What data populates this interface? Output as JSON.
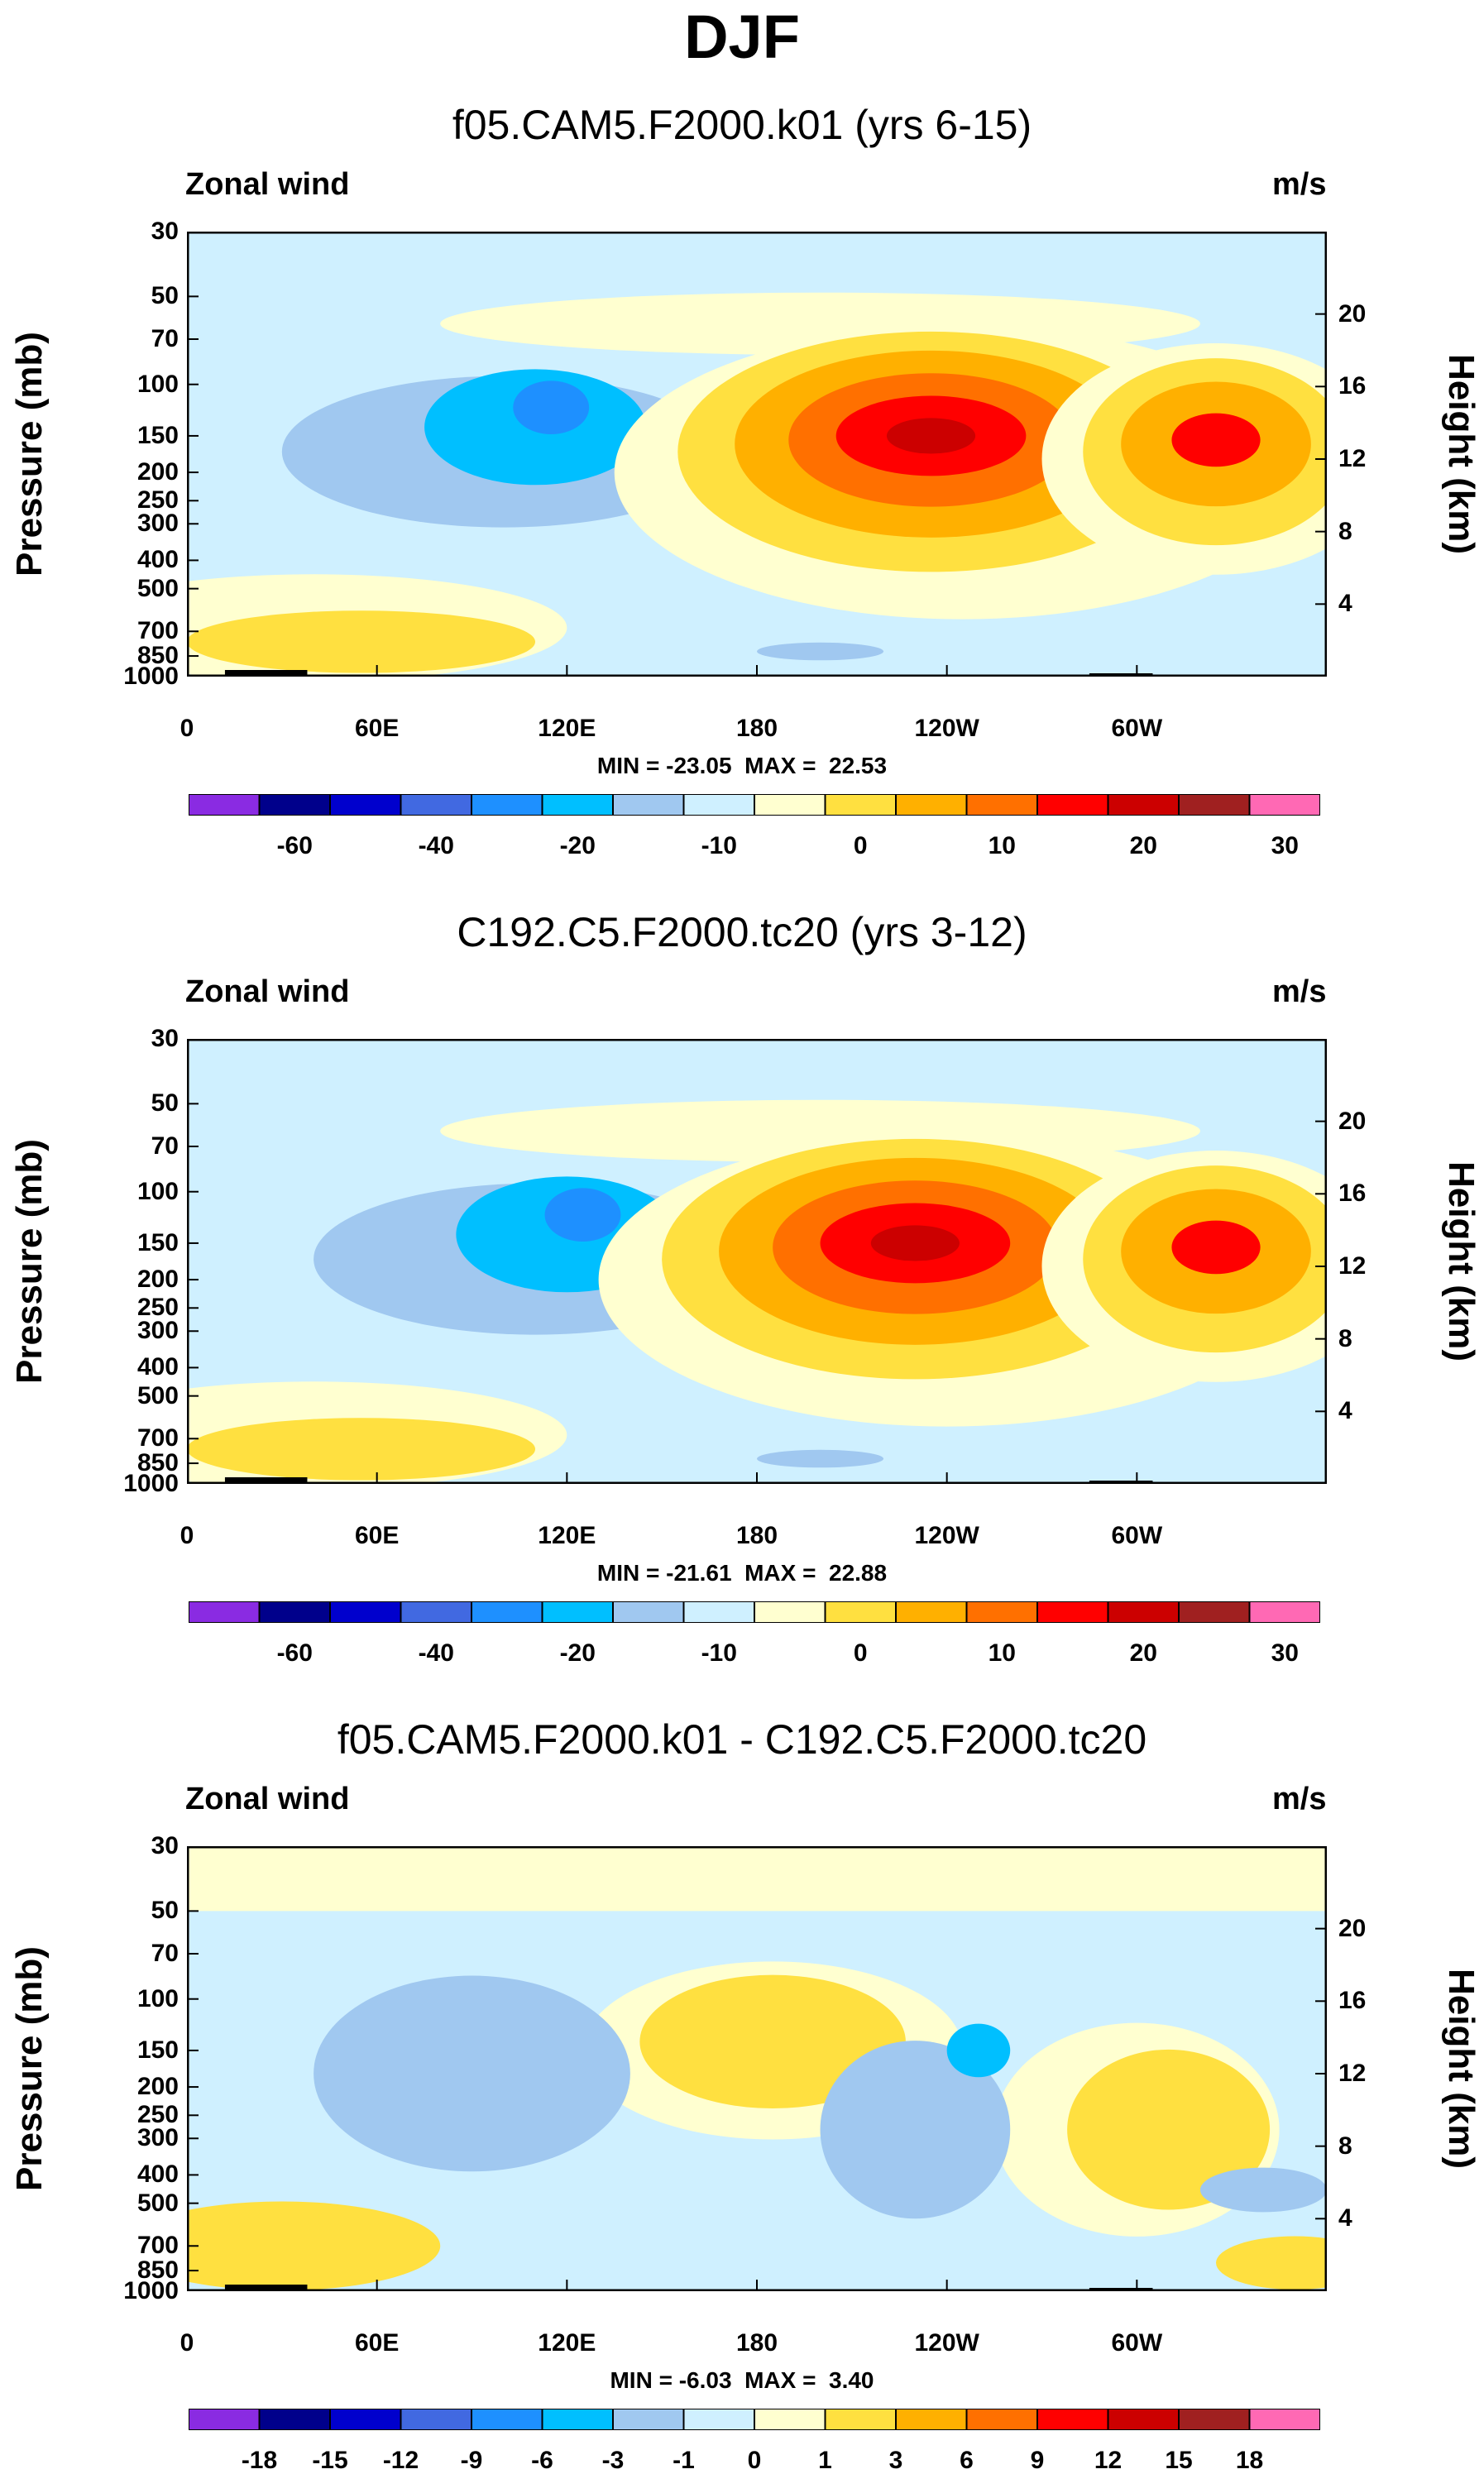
{
  "figure_title": "DJF",
  "chart_data": [
    {
      "type": "heatmap",
      "title": "f05.CAM5.F2000.k01 (yrs 6-15)",
      "variable_label": "Zonal wind",
      "units": "m/s",
      "ylabel": "Pressure (mb)",
      "ylabel_right": "Height (km)",
      "y_ticks": [
        "30",
        "50",
        "70",
        "100",
        "150",
        "200",
        "250",
        "300",
        "400",
        "500",
        "700",
        "850",
        "1000"
      ],
      "y_ticks_right": [
        "20",
        "16",
        "12",
        "8",
        "4"
      ],
      "x_ticks": [
        "0",
        "60E",
        "120E",
        "180",
        "120W",
        "60W"
      ],
      "min_max": "MIN = -23.05  MAX =  22.53",
      "colorbar_labels": [
        "-60",
        "-40",
        "-20",
        "-10",
        "0",
        "10",
        "20",
        "30"
      ],
      "colorbar_colors": [
        "#8a2be2",
        "#00008b",
        "#0000cd",
        "#4169e1",
        "#1e90ff",
        "#00bfff",
        "#a0c8f0",
        "#cff0ff",
        "#ffffd0",
        "#ffe040",
        "#ffb000",
        "#ff7000",
        "#ff0000",
        "#cc0000",
        "#a02020",
        "#ff69b4"
      ],
      "features": [
        {
          "kind": "jet",
          "lon": 110,
          "p": 120,
          "sign": "negative",
          "peak": -23.05
        },
        {
          "kind": "jet",
          "lon": 235,
          "p": 150,
          "sign": "positive",
          "peak": 22.53
        },
        {
          "kind": "jet",
          "lon": 325,
          "p": 150,
          "sign": "positive",
          "peak": 20
        }
      ]
    },
    {
      "type": "heatmap",
      "title": "C192.C5.F2000.tc20 (yrs 3-12)",
      "variable_label": "Zonal wind",
      "units": "m/s",
      "ylabel": "Pressure (mb)",
      "ylabel_right": "Height (km)",
      "y_ticks": [
        "30",
        "50",
        "70",
        "100",
        "150",
        "200",
        "250",
        "300",
        "400",
        "500",
        "700",
        "850",
        "1000"
      ],
      "y_ticks_right": [
        "20",
        "16",
        "12",
        "8",
        "4"
      ],
      "x_ticks": [
        "0",
        "60E",
        "120E",
        "180",
        "120W",
        "60W"
      ],
      "min_max": "MIN = -21.61  MAX =  22.88",
      "colorbar_labels": [
        "-60",
        "-40",
        "-20",
        "-10",
        "0",
        "10",
        "20",
        "30"
      ],
      "colorbar_colors": [
        "#8a2be2",
        "#00008b",
        "#0000cd",
        "#4169e1",
        "#1e90ff",
        "#00bfff",
        "#a0c8f0",
        "#cff0ff",
        "#ffffd0",
        "#ffe040",
        "#ffb000",
        "#ff7000",
        "#ff0000",
        "#cc0000",
        "#a02020",
        "#ff69b4"
      ],
      "features": [
        {
          "kind": "jet",
          "lon": 120,
          "p": 120,
          "sign": "negative",
          "peak": -21.61
        },
        {
          "kind": "jet",
          "lon": 230,
          "p": 150,
          "sign": "positive",
          "peak": 22.88
        },
        {
          "kind": "jet",
          "lon": 325,
          "p": 150,
          "sign": "positive",
          "peak": 20
        }
      ]
    },
    {
      "type": "heatmap",
      "title": "f05.CAM5.F2000.k01 - C192.C5.F2000.tc20",
      "variable_label": "Zonal wind",
      "units": "m/s",
      "ylabel": "Pressure (mb)",
      "ylabel_right": "Height (km)",
      "y_ticks": [
        "30",
        "50",
        "70",
        "100",
        "150",
        "200",
        "250",
        "300",
        "400",
        "500",
        "700",
        "850",
        "1000"
      ],
      "y_ticks_right": [
        "20",
        "16",
        "12",
        "8",
        "4"
      ],
      "x_ticks": [
        "0",
        "60E",
        "120E",
        "180",
        "120W",
        "60W"
      ],
      "min_max": "MIN = -6.03  MAX =  3.40",
      "colorbar_labels": [
        "-18",
        "-15",
        "-12",
        "-9",
        "-6",
        "-3",
        "-1",
        "0",
        "1",
        "3",
        "6",
        "9",
        "12",
        "15",
        "18"
      ],
      "colorbar_colors": [
        "#8a2be2",
        "#00008b",
        "#0000cd",
        "#4169e1",
        "#1e90ff",
        "#00bfff",
        "#a0c8f0",
        "#cff0ff",
        "#ffffd0",
        "#ffe040",
        "#ffb000",
        "#ff7000",
        "#ff0000",
        "#cc0000",
        "#a02020",
        "#ff69b4"
      ],
      "features": [
        {
          "kind": "anomaly",
          "lon": 250,
          "p": 150,
          "sign": "negative",
          "peak": -6.03
        },
        {
          "kind": "anomaly",
          "lon": 185,
          "p": 150,
          "sign": "positive",
          "peak": 3.4
        }
      ]
    }
  ]
}
